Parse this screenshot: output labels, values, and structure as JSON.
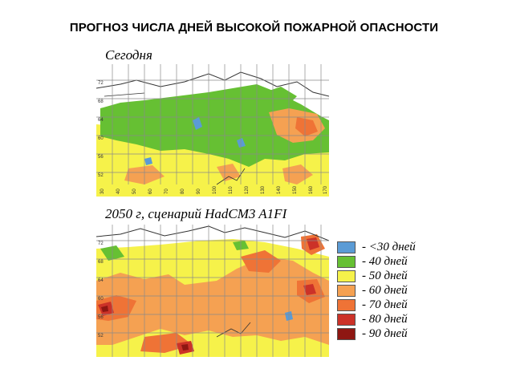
{
  "title": "ПРОГНОЗ ЧИСЛА ДНЕЙ ВЫСОКОЙ ПОЖАРНОЙ ОПАСНОСТИ",
  "maps": {
    "today": {
      "label": "Сегодня",
      "lat_labels": [
        "72",
        "68",
        "64",
        "60",
        "56",
        "52"
      ],
      "lon_labels": [
        "30",
        "40",
        "50",
        "60",
        "70",
        "80",
        "90",
        "100",
        "110",
        "120",
        "130",
        "140",
        "150",
        "160",
        "170"
      ]
    },
    "future": {
      "label": "2050 г, сценарий HadCM3 A1FI",
      "lat_labels": [
        "72",
        "68",
        "64",
        "60",
        "56",
        "52"
      ]
    }
  },
  "legend": [
    {
      "label": "- <30 дней",
      "color": "#5b9bd5"
    },
    {
      "label": "- 40 дней",
      "color": "#66c033"
    },
    {
      "label": "- 50 дней",
      "color": "#f6f24a"
    },
    {
      "label": "- 60 дней",
      "color": "#f5a152"
    },
    {
      "label": "- 70 дней",
      "color": "#ef7336"
    },
    {
      "label": "- 80 дней",
      "color": "#cc3228"
    },
    {
      "label": "- 90 дней",
      "color": "#8e1712"
    }
  ]
}
